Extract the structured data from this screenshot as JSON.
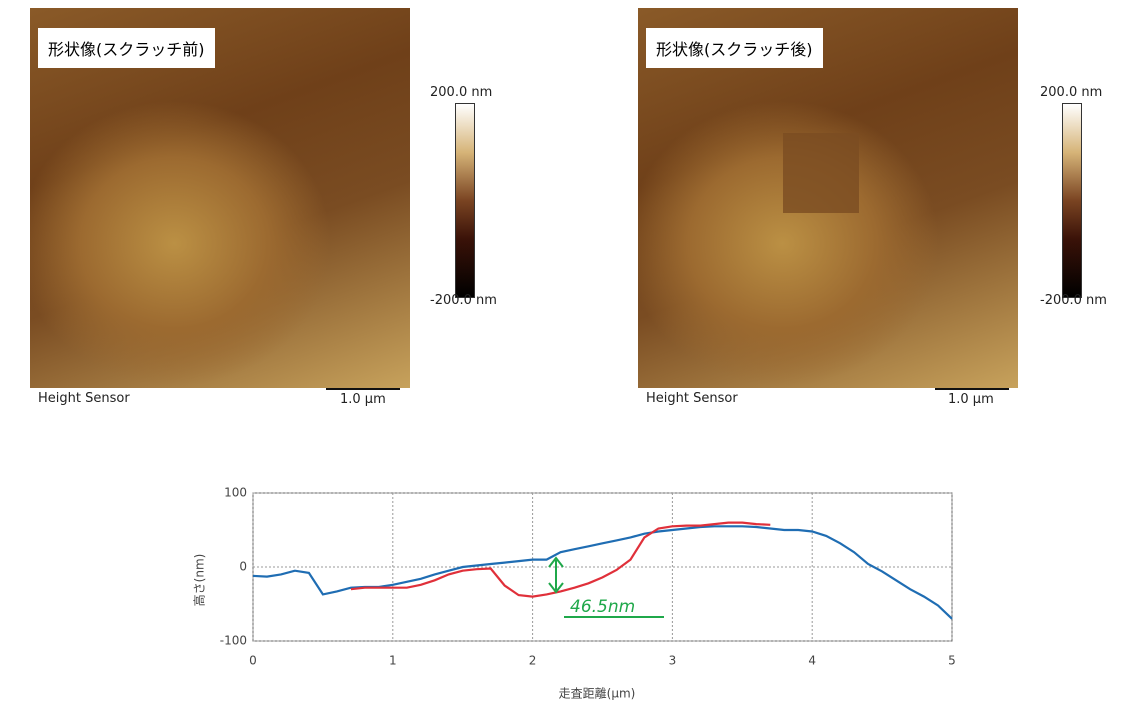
{
  "images": [
    {
      "title": "形状像(スクラッチ前)",
      "colorbar_max": "200.0 nm",
      "colorbar_min": "-200.0 nm",
      "sensor": "Height Sensor",
      "scale": "1.0 µm"
    },
    {
      "title": "形状像(スクラッチ後)",
      "colorbar_max": "200.0 nm",
      "colorbar_min": "-200.0 nm",
      "sensor": "Height Sensor",
      "scale": "1.0 µm"
    }
  ],
  "chart_data": {
    "type": "line",
    "x_label": "走査距離(μm)",
    "y_label": "高さ(nm)",
    "annotation": "46.5nm",
    "x": [
      0,
      0.1,
      0.2,
      0.3,
      0.4,
      0.5,
      0.6,
      0.7,
      0.8,
      0.9,
      1.0,
      1.1,
      1.2,
      1.3,
      1.4,
      1.5,
      1.6,
      1.7,
      1.8,
      1.9,
      2.0,
      2.1,
      2.2,
      2.3,
      2.4,
      2.5,
      2.6,
      2.7,
      2.8,
      2.9,
      3.0,
      3.1,
      3.2,
      3.3,
      3.4,
      3.5,
      3.6,
      3.7,
      3.8,
      3.9,
      4.0,
      4.1,
      4.2,
      4.3,
      4.4,
      4.5,
      4.6,
      4.7,
      4.8,
      4.9,
      5.0
    ],
    "series": [
      {
        "color": "#1f6db3",
        "values": [
          -12,
          -13,
          -10,
          -5,
          -8,
          -37,
          -33,
          -28,
          -27,
          -27,
          -24,
          -20,
          -16,
          -10,
          -5,
          0,
          2,
          4,
          6,
          8,
          10,
          10,
          20,
          24,
          28,
          32,
          36,
          40,
          45,
          48,
          50,
          52,
          54,
          55,
          55,
          55,
          54,
          52,
          50,
          50,
          48,
          42,
          32,
          20,
          4,
          -6,
          -18,
          -30,
          -40,
          -52,
          -70
        ]
      },
      {
        "color": "#e0303a",
        "values": [
          null,
          null,
          null,
          null,
          null,
          null,
          null,
          -30,
          -28,
          -28,
          -28,
          -28,
          -24,
          -18,
          -10,
          -5,
          -3,
          -2,
          -25,
          -38,
          -40,
          -37,
          -33,
          -28,
          -22,
          -14,
          -4,
          10,
          40,
          52,
          55,
          56,
          56,
          58,
          60,
          60,
          58,
          57,
          null,
          null,
          null,
          null,
          null,
          null,
          null,
          null,
          null,
          null,
          null,
          null,
          null
        ]
      }
    ],
    "xlim": [
      0,
      5
    ],
    "ylim": [
      -100,
      100
    ],
    "xticks": [
      0,
      1,
      2,
      3,
      4,
      5
    ],
    "yticks": [
      -100,
      0,
      100
    ],
    "grid": true
  }
}
